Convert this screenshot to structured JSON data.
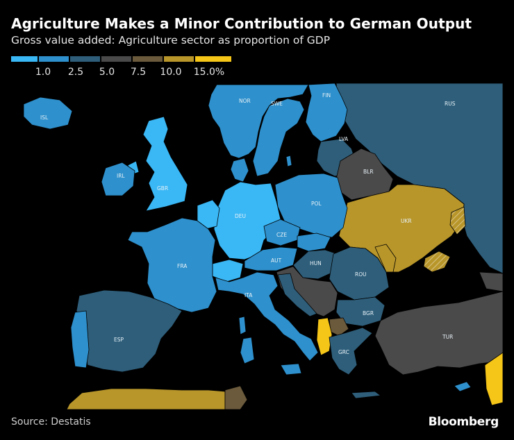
{
  "title": "Agriculture Makes a Minor Contribution to German Output",
  "subtitle": "Gross value added: Agriculture sector as proportion of GDP",
  "legend": {
    "bins": [
      {
        "color": "#3ab7f5"
      },
      {
        "color": "#2e90cc"
      },
      {
        "color": "#2e5e7a"
      },
      {
        "color": "#4a4a4a"
      },
      {
        "color": "#6b5a3c"
      },
      {
        "color": "#b8962a"
      },
      {
        "color": "#f5c518"
      }
    ],
    "labels": [
      "1.0",
      "2.5",
      "5.0",
      "7.5",
      "10.0",
      "15.0%"
    ]
  },
  "countries": {
    "ISL": "ISL",
    "NOR": "NOR",
    "SWE": "SWE",
    "FIN": "FIN",
    "RUS": "RUS",
    "LVA": "LVA",
    "BLR": "BLR",
    "IRL": "IRL",
    "GBR": "GBR",
    "DEU": "DEU",
    "POL": "POL",
    "UKR": "UKR",
    "CZE": "CZE",
    "AUT": "AUT",
    "HUN": "HUN",
    "ROU": "ROU",
    "FRA": "FRA",
    "ITA": "ITA",
    "BGR": "BGR",
    "ESP": "ESP",
    "TUR": "TUR",
    "GRC": "GRC"
  },
  "colors": {
    "lightest": "#3ab7f5",
    "light": "#2e90cc",
    "mid": "#2e5e7a",
    "gray": "#4a4a4a",
    "brown": "#6b5a3c",
    "gold": "#b8962a",
    "yellow": "#f5c518"
  },
  "source": "Source: Destatis",
  "brand": "Bloomberg"
}
